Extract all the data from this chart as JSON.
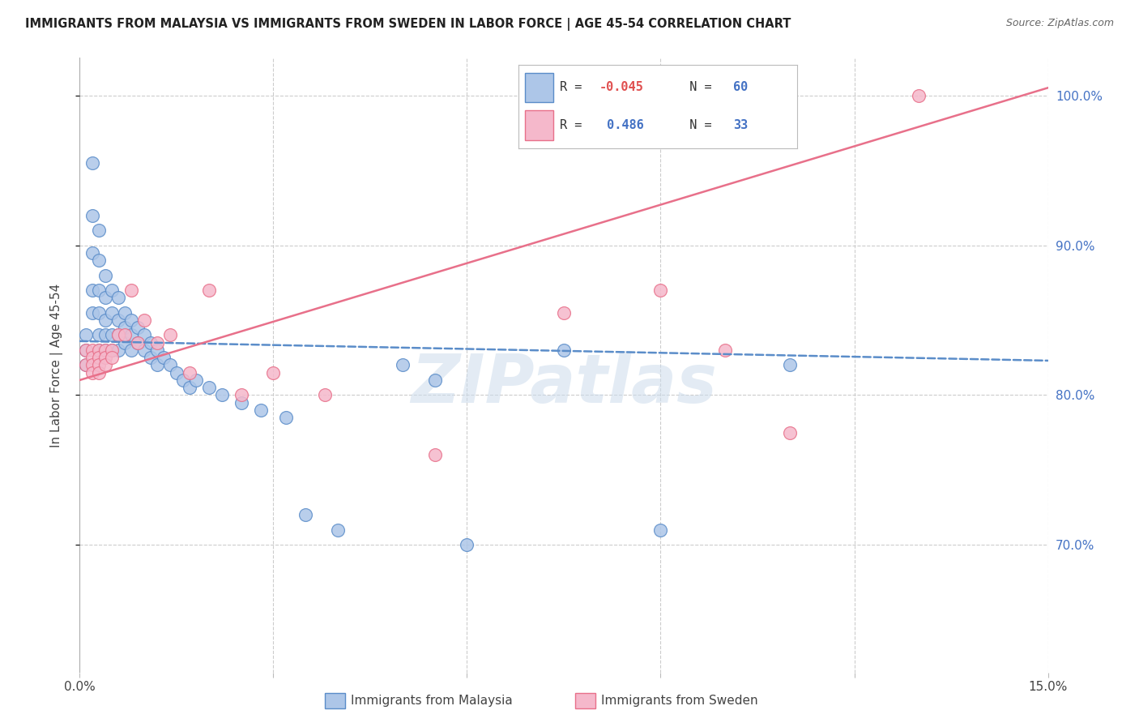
{
  "title": "IMMIGRANTS FROM MALAYSIA VS IMMIGRANTS FROM SWEDEN IN LABOR FORCE | AGE 45-54 CORRELATION CHART",
  "source": "Source: ZipAtlas.com",
  "ylabel": "In Labor Force | Age 45-54",
  "legend_label1": "Immigrants from Malaysia",
  "legend_label2": "Immigrants from Sweden",
  "R1": -0.045,
  "N1": 60,
  "R2": 0.486,
  "N2": 33,
  "color_blue": "#adc6e8",
  "color_pink": "#f5b8cb",
  "color_blue_line": "#5b8dc9",
  "color_pink_line": "#e8708a",
  "watermark": "ZIPatlas",
  "xlim": [
    0.0,
    0.15
  ],
  "ylim": [
    0.615,
    1.025
  ],
  "blue_x": [
    0.001,
    0.001,
    0.001,
    0.002,
    0.002,
    0.002,
    0.002,
    0.002,
    0.003,
    0.003,
    0.003,
    0.003,
    0.003,
    0.003,
    0.004,
    0.004,
    0.004,
    0.004,
    0.004,
    0.005,
    0.005,
    0.005,
    0.005,
    0.006,
    0.006,
    0.006,
    0.006,
    0.007,
    0.007,
    0.007,
    0.008,
    0.008,
    0.008,
    0.009,
    0.009,
    0.01,
    0.01,
    0.011,
    0.011,
    0.012,
    0.012,
    0.013,
    0.014,
    0.015,
    0.016,
    0.017,
    0.018,
    0.02,
    0.022,
    0.025,
    0.028,
    0.032,
    0.035,
    0.04,
    0.05,
    0.055,
    0.06,
    0.075,
    0.09,
    0.11
  ],
  "blue_y": [
    0.84,
    0.83,
    0.82,
    0.955,
    0.92,
    0.895,
    0.87,
    0.855,
    0.91,
    0.89,
    0.87,
    0.855,
    0.84,
    0.83,
    0.88,
    0.865,
    0.85,
    0.84,
    0.83,
    0.87,
    0.855,
    0.84,
    0.83,
    0.865,
    0.85,
    0.84,
    0.83,
    0.855,
    0.845,
    0.835,
    0.85,
    0.84,
    0.83,
    0.845,
    0.835,
    0.84,
    0.83,
    0.835,
    0.825,
    0.83,
    0.82,
    0.825,
    0.82,
    0.815,
    0.81,
    0.805,
    0.81,
    0.805,
    0.8,
    0.795,
    0.79,
    0.785,
    0.72,
    0.71,
    0.82,
    0.81,
    0.7,
    0.83,
    0.71,
    0.82
  ],
  "pink_x": [
    0.001,
    0.001,
    0.002,
    0.002,
    0.002,
    0.002,
    0.003,
    0.003,
    0.003,
    0.003,
    0.004,
    0.004,
    0.004,
    0.005,
    0.005,
    0.006,
    0.007,
    0.008,
    0.009,
    0.01,
    0.012,
    0.014,
    0.017,
    0.02,
    0.025,
    0.03,
    0.038,
    0.055,
    0.075,
    0.09,
    0.1,
    0.11,
    0.13
  ],
  "pink_y": [
    0.83,
    0.82,
    0.83,
    0.825,
    0.82,
    0.815,
    0.83,
    0.825,
    0.82,
    0.815,
    0.83,
    0.825,
    0.82,
    0.83,
    0.825,
    0.84,
    0.84,
    0.87,
    0.835,
    0.85,
    0.835,
    0.84,
    0.815,
    0.87,
    0.8,
    0.815,
    0.8,
    0.76,
    0.855,
    0.87,
    0.83,
    0.775,
    1.0
  ],
  "blue_line_x0": 0.0,
  "blue_line_y0": 0.836,
  "blue_line_x1": 0.15,
  "blue_line_y1": 0.823,
  "pink_line_x0": 0.0,
  "pink_line_y0": 0.81,
  "pink_line_x1": 0.15,
  "pink_line_y1": 1.005
}
